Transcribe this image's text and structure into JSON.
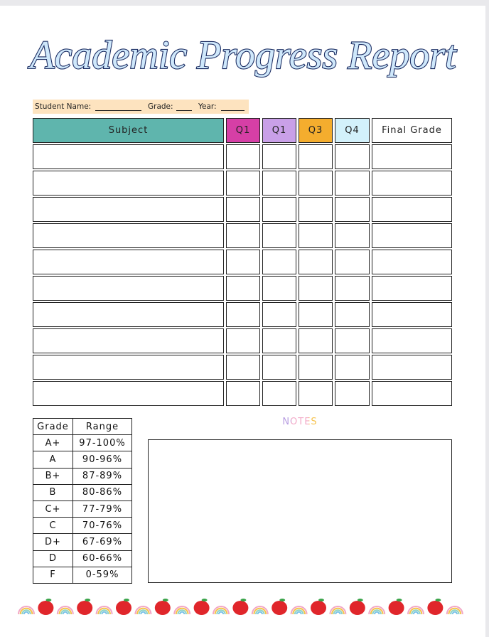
{
  "header": {
    "title": "Academic Progress Report"
  },
  "student_info": {
    "name_label": "Student Name:",
    "grade_label": "Grade:",
    "year_label": "Year:"
  },
  "table": {
    "columns": [
      "Subject",
      "Q1",
      "Q1",
      "Q3",
      "Q4",
      "Final Grade"
    ]
  },
  "grade_scale": {
    "columns": [
      "Grade",
      "Range"
    ],
    "rows": [
      [
        "A+",
        "97-100%"
      ],
      [
        "A",
        "90-96%"
      ],
      [
        "B+",
        "87-89%"
      ],
      [
        "B",
        "80-86%"
      ],
      [
        "C+",
        "77-79%"
      ],
      [
        "C",
        "70-76%"
      ],
      [
        "D+",
        "67-69%"
      ],
      [
        "D",
        "60-66%"
      ],
      [
        "F",
        "0-59%"
      ]
    ]
  },
  "notes": {
    "title": "NOTES"
  }
}
